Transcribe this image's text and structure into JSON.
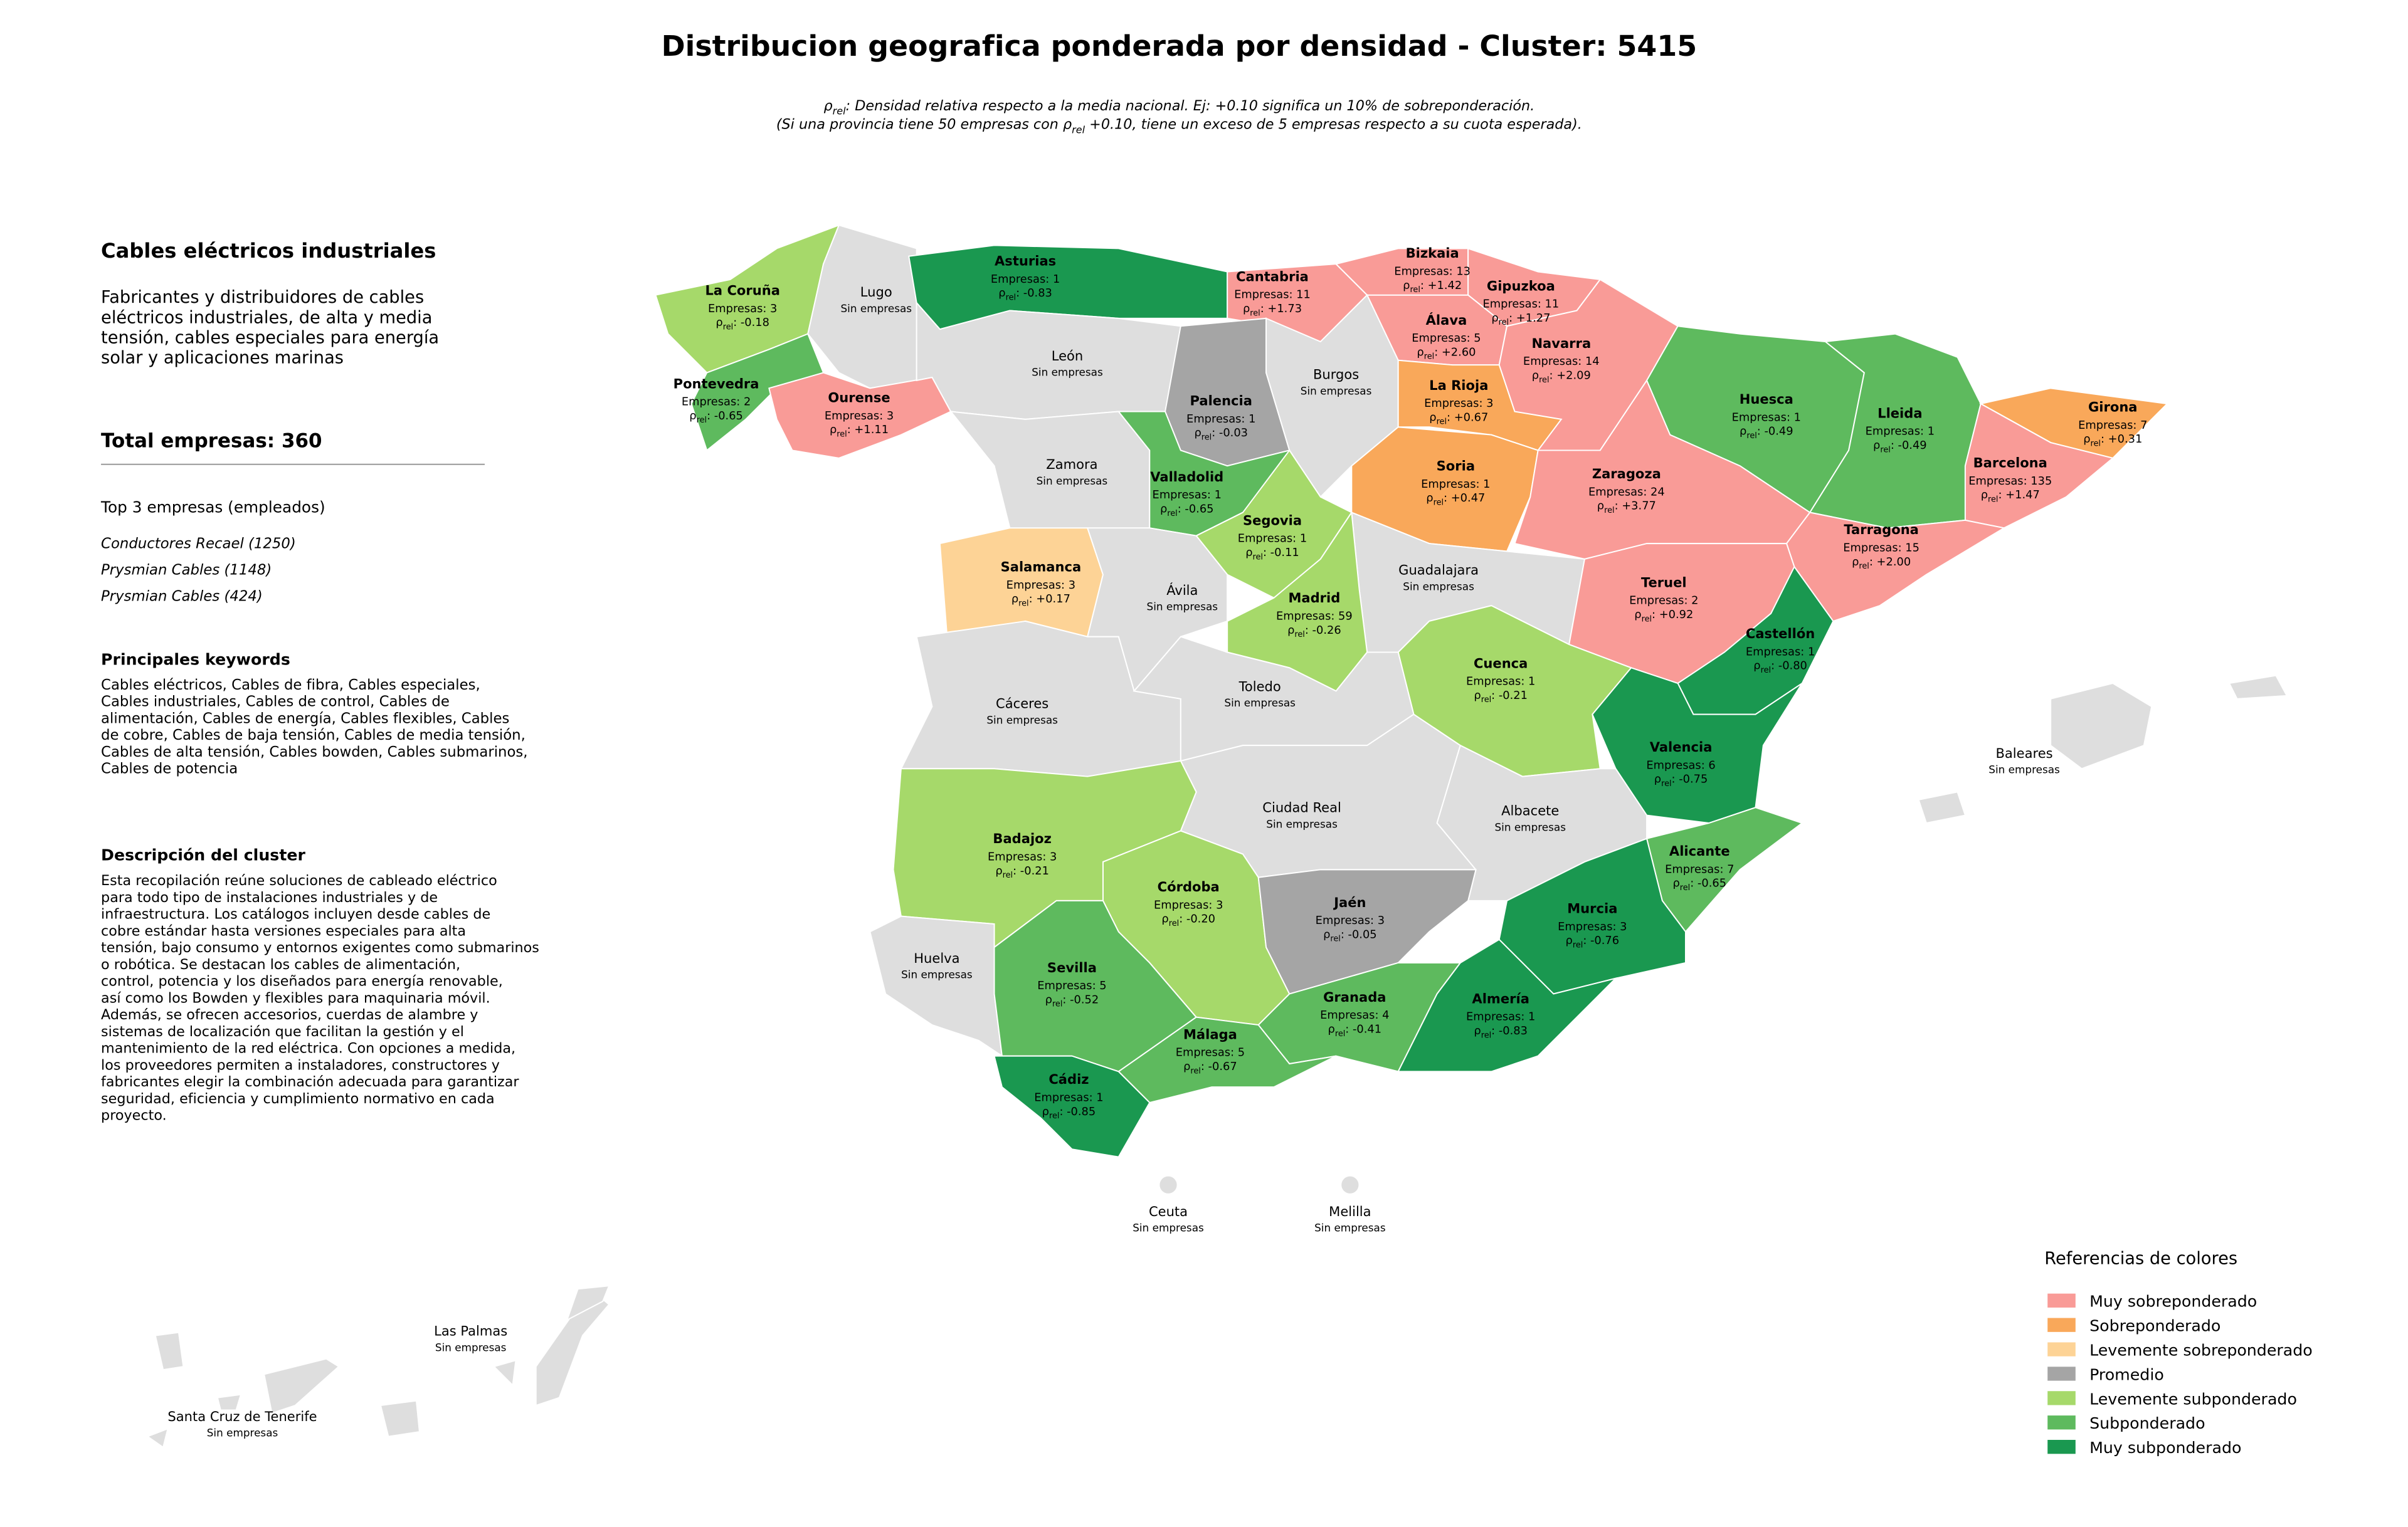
{
  "title": "Distribucion geografica ponderada por densidad - Cluster: 5415",
  "subtitle": [
    [
      "ρ",
      "rel",
      ": Densidad relativa respecto a la media nacional. Ej: +0.10 significa un 10% de sobreponderación."
    ],
    [
      "(Si una provincia tiene 50 empresas con ρ",
      "rel",
      " +0.10, tiene un exceso de 5 empresas respecto a su cuota esperada)."
    ]
  ],
  "panel": {
    "heading": "Cables eléctricos industriales",
    "summary": [
      "Fabricantes y distribuidores de cables",
      "eléctricos industriales, de alta y media",
      "tensión, cables especiales para energía",
      "solar y aplicaciones marinas"
    ],
    "total": "Total empresas: 360",
    "top_title": "Top 3 empresas (empleados)",
    "top": [
      "Conductores Recael (1250)",
      "Prysmian Cables (1148)",
      "Prysmian Cables (424)"
    ],
    "keywords_title": "Principales keywords",
    "keywords": [
      "Cables eléctricos, Cables de fibra, Cables especiales,",
      "Cables industriales, Cables de control, Cables de",
      "alimentación, Cables de energía, Cables flexibles, Cables",
      "de cobre, Cables de baja tensión, Cables de media tensión,",
      "Cables de alta tensión, Cables bowden, Cables submarinos,",
      "Cables de potencia"
    ],
    "description_title": "Descripción del cluster",
    "description": [
      "Esta recopilación reúne soluciones de cableado eléctrico",
      "para todo tipo de instalaciones industriales y de",
      "infraestructura. Los catálogos incluyen desde cables de",
      "cobre estándar hasta versiones especiales para alta",
      "tensión, bajo consumo y entornos exigentes como submarinos",
      "o robótica. Se destacan los cables de alimentación,",
      "control, potencia y los diseñados para energía renovable,",
      "así como los Bowden y flexibles para maquinaria móvil.",
      "Además, se ofrecen accesorios, cuerdas de alambre y",
      "sistemas de localización que facilitan la gestión y el",
      "mantenimiento de la red eléctrica. Con opciones a medida,",
      "los proveedores permiten a instaladores, constructores y",
      "fabricantes elegir la combinación adecuada para garantizar",
      "seguridad, eficiencia y cumplimiento normativo en cada",
      "proyecto."
    ]
  },
  "legend": {
    "title": "Referencias de colores",
    "items": [
      {
        "name": "Muy sobreponderado",
        "color": "#f99b97"
      },
      {
        "name": "Sobreponderado",
        "color": "#f9a85a"
      },
      {
        "name": "Levemente sobreponderado",
        "color": "#fdd396"
      },
      {
        "name": "Promedio",
        "color": "#a5a5a5"
      },
      {
        "name": "Levemente subponderado",
        "color": "#a6d96a"
      },
      {
        "name": "Subponderado",
        "color": "#5eba5e"
      },
      {
        "name": "Muy subponderado",
        "color": "#1a9850"
      }
    ]
  },
  "map": {
    "no_data_color": "#dedede",
    "provinces": [
      {
        "name": "La Coruña",
        "companies": "Empresas: 3",
        "density": [
          "ρ",
          "rel",
          ": -0.18"
        ],
        "category": "Levemente subponderado"
      },
      {
        "name": "Lugo",
        "note": "Sin empresas"
      },
      {
        "name": "Asturias",
        "companies": "Empresas: 1",
        "density": [
          "ρ",
          "rel",
          ": -0.83"
        ],
        "category": "Muy subponderado"
      },
      {
        "name": "Cantabria",
        "companies": "Empresas: 11",
        "density": [
          "ρ",
          "rel",
          ": +1.73"
        ],
        "category": "Muy sobreponderado"
      },
      {
        "name": "Bizkaia",
        "companies": "Empresas: 13",
        "density": [
          "ρ",
          "rel",
          ": +1.42"
        ],
        "category": "Muy sobreponderado"
      },
      {
        "name": "Gipuzkoa",
        "companies": "Empresas: 11",
        "density": [
          "ρ",
          "rel",
          ": +1.27"
        ],
        "category": "Muy sobreponderado"
      },
      {
        "name": "Álava",
        "companies": "Empresas: 5",
        "density": [
          "ρ",
          "rel",
          ": +2.60"
        ],
        "category": "Muy sobreponderado"
      },
      {
        "name": "Navarra",
        "companies": "Empresas: 14",
        "density": [
          "ρ",
          "rel",
          ": +2.09"
        ],
        "category": "Muy sobreponderado"
      },
      {
        "name": "Pontevedra",
        "companies": "Empresas: 2",
        "density": [
          "ρ",
          "rel",
          ": -0.65"
        ],
        "category": "Subponderado"
      },
      {
        "name": "Ourense",
        "companies": "Empresas: 3",
        "density": [
          "ρ",
          "rel",
          ": +1.11"
        ],
        "category": "Muy sobreponderado"
      },
      {
        "name": "León",
        "note": "Sin empresas"
      },
      {
        "name": "Palencia",
        "companies": "Empresas: 1",
        "density": [
          "ρ",
          "rel",
          ": -0.03"
        ],
        "category": "Promedio"
      },
      {
        "name": "Burgos",
        "note": "Sin empresas"
      },
      {
        "name": "La Rioja",
        "companies": "Empresas: 3",
        "density": [
          "ρ",
          "rel",
          ": +0.67"
        ],
        "category": "Sobreponderado"
      },
      {
        "name": "Huesca",
        "companies": "Empresas: 1",
        "density": [
          "ρ",
          "rel",
          ": -0.49"
        ],
        "category": "Subponderado"
      },
      {
        "name": "Lleida",
        "companies": "Empresas: 1",
        "density": [
          "ρ",
          "rel",
          ": -0.49"
        ],
        "category": "Subponderado"
      },
      {
        "name": "Girona",
        "companies": "Empresas: 7",
        "density": [
          "ρ",
          "rel",
          ": +0.31"
        ],
        "category": "Sobreponderado"
      },
      {
        "name": "Barcelona",
        "companies": "Empresas: 135",
        "density": [
          "ρ",
          "rel",
          ": +1.47"
        ],
        "category": "Muy sobreponderado"
      },
      {
        "name": "Zamora",
        "note": "Sin empresas"
      },
      {
        "name": "Valladolid",
        "companies": "Empresas: 1",
        "density": [
          "ρ",
          "rel",
          ": -0.65"
        ],
        "category": "Subponderado"
      },
      {
        "name": "Soria",
        "companies": "Empresas: 1",
        "density": [
          "ρ",
          "rel",
          ": +0.47"
        ],
        "category": "Sobreponderado"
      },
      {
        "name": "Zaragoza",
        "companies": "Empresas: 24",
        "density": [
          "ρ",
          "rel",
          ": +3.77"
        ],
        "category": "Muy sobreponderado"
      },
      {
        "name": "Segovia",
        "companies": "Empresas: 1",
        "density": [
          "ρ",
          "rel",
          ": -0.11"
        ],
        "category": "Levemente subponderado"
      },
      {
        "name": "Tarragona",
        "companies": "Empresas: 15",
        "density": [
          "ρ",
          "rel",
          ": +2.00"
        ],
        "category": "Muy sobreponderado"
      },
      {
        "name": "Salamanca",
        "companies": "Empresas: 3",
        "density": [
          "ρ",
          "rel",
          ": +0.17"
        ],
        "category": "Levemente sobreponderado"
      },
      {
        "name": "Ávila",
        "note": "Sin empresas"
      },
      {
        "name": "Guadalajara",
        "note": "Sin empresas"
      },
      {
        "name": "Madrid",
        "companies": "Empresas: 59",
        "density": [
          "ρ",
          "rel",
          ": -0.26"
        ],
        "category": "Levemente subponderado"
      },
      {
        "name": "Teruel",
        "companies": "Empresas: 2",
        "density": [
          "ρ",
          "rel",
          ": +0.92"
        ],
        "category": "Muy sobreponderado"
      },
      {
        "name": "Castellón",
        "companies": "Empresas: 1",
        "density": [
          "ρ",
          "rel",
          ": -0.80"
        ],
        "category": "Muy subponderado"
      },
      {
        "name": "Cuenca",
        "companies": "Empresas: 1",
        "density": [
          "ρ",
          "rel",
          ": -0.21"
        ],
        "category": "Levemente subponderado"
      },
      {
        "name": "Cáceres",
        "note": "Sin empresas"
      },
      {
        "name": "Toledo",
        "note": "Sin empresas"
      },
      {
        "name": "Valencia",
        "companies": "Empresas: 6",
        "density": [
          "ρ",
          "rel",
          ": -0.75"
        ],
        "category": "Muy subponderado"
      },
      {
        "name": "Baleares",
        "note": "Sin empresas"
      },
      {
        "name": "Ciudad Real",
        "note": "Sin empresas"
      },
      {
        "name": "Albacete",
        "note": "Sin empresas"
      },
      {
        "name": "Badajoz",
        "companies": "Empresas: 3",
        "density": [
          "ρ",
          "rel",
          ": -0.21"
        ],
        "category": "Levemente subponderado"
      },
      {
        "name": "Alicante",
        "companies": "Empresas: 7",
        "density": [
          "ρ",
          "rel",
          ": -0.65"
        ],
        "category": "Subponderado"
      },
      {
        "name": "Córdoba",
        "companies": "Empresas: 3",
        "density": [
          "ρ",
          "rel",
          ": -0.20"
        ],
        "category": "Levemente subponderado"
      },
      {
        "name": "Jaén",
        "companies": "Empresas: 3",
        "density": [
          "ρ",
          "rel",
          ": -0.05"
        ],
        "category": "Promedio"
      },
      {
        "name": "Murcia",
        "companies": "Empresas: 3",
        "density": [
          "ρ",
          "rel",
          ": -0.76"
        ],
        "category": "Muy subponderado"
      },
      {
        "name": "Huelva",
        "note": "Sin empresas"
      },
      {
        "name": "Sevilla",
        "companies": "Empresas: 5",
        "density": [
          "ρ",
          "rel",
          ": -0.52"
        ],
        "category": "Subponderado"
      },
      {
        "name": "Granada",
        "companies": "Empresas: 4",
        "density": [
          "ρ",
          "rel",
          ": -0.41"
        ],
        "category": "Subponderado"
      },
      {
        "name": "Almería",
        "companies": "Empresas: 1",
        "density": [
          "ρ",
          "rel",
          ": -0.83"
        ],
        "category": "Muy subponderado"
      },
      {
        "name": "Málaga",
        "companies": "Empresas: 5",
        "density": [
          "ρ",
          "rel",
          ": -0.67"
        ],
        "category": "Subponderado"
      },
      {
        "name": "Cádiz",
        "companies": "Empresas: 1",
        "density": [
          "ρ",
          "rel",
          ": -0.85"
        ],
        "category": "Muy subponderado"
      },
      {
        "name": "Ceuta",
        "note": "Sin empresas"
      },
      {
        "name": "Melilla",
        "note": "Sin empresas"
      },
      {
        "name": "Las Palmas",
        "note": "Sin empresas"
      },
      {
        "name": "Santa Cruz de Tenerife",
        "note": "Sin empresas"
      }
    ]
  }
}
